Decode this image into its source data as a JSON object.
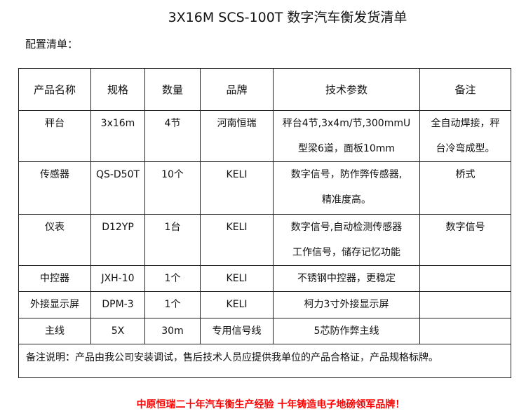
{
  "title": "3X16M SCS-100T 数字汽车衡发货清单",
  "subtitle": "配置清单：",
  "table": {
    "headers": [
      "产品名称",
      "规格",
      "数量",
      "品牌",
      "技术参数",
      "备注"
    ],
    "rows": [
      {
        "name": "秤台",
        "spec": "3x16m",
        "qty": "4节",
        "brand": "河南恒瑞",
        "tech": [
          "秤台4节,3x4m/节,300mmU",
          "型梁6道，面板10mm"
        ],
        "remark": [
          "全自动焊接，秤",
          "台冷弯成型。"
        ]
      },
      {
        "name": "传感器",
        "spec": "QS-D50T",
        "qty": "10个",
        "brand": "KELI",
        "tech": [
          "数字信号，防作弊传感器,",
          "精准度高。"
        ],
        "remark": [
          "桥式"
        ]
      },
      {
        "name": "仪表",
        "spec": "D12YP",
        "qty": "1台",
        "brand": "KELI",
        "tech": [
          "数字信号,自动检测传感器",
          "工作信号，储存记忆功能"
        ],
        "remark": [
          "数字信号"
        ]
      },
      {
        "name": "中控器",
        "spec": "JXH-10",
        "qty": "1个",
        "brand": "KELI",
        "tech": [
          "不锈钢中控器，更稳定"
        ],
        "remark": [
          ""
        ]
      },
      {
        "name": "外接显示屏",
        "spec": "DPM-3",
        "qty": "1个",
        "brand": "KELI",
        "tech": [
          "柯力3寸外接显示屏"
        ],
        "remark": [
          ""
        ]
      },
      {
        "name": "主线",
        "spec": "5X",
        "qty": "30m",
        "brand": "专用信号线",
        "tech": [
          "5芯防作弊主线"
        ],
        "remark": [
          ""
        ]
      }
    ],
    "note": "备注说明：产品由我公司安装调试，售后技术人员应提供我单位的产品合格证，产品规格标牌。"
  },
  "footer": "中原恒瑞二十年汽车衡生产经验  十年铸造电子地磅领军品牌！",
  "colors": {
    "footer": "#ff0000",
    "border": "#222222"
  }
}
